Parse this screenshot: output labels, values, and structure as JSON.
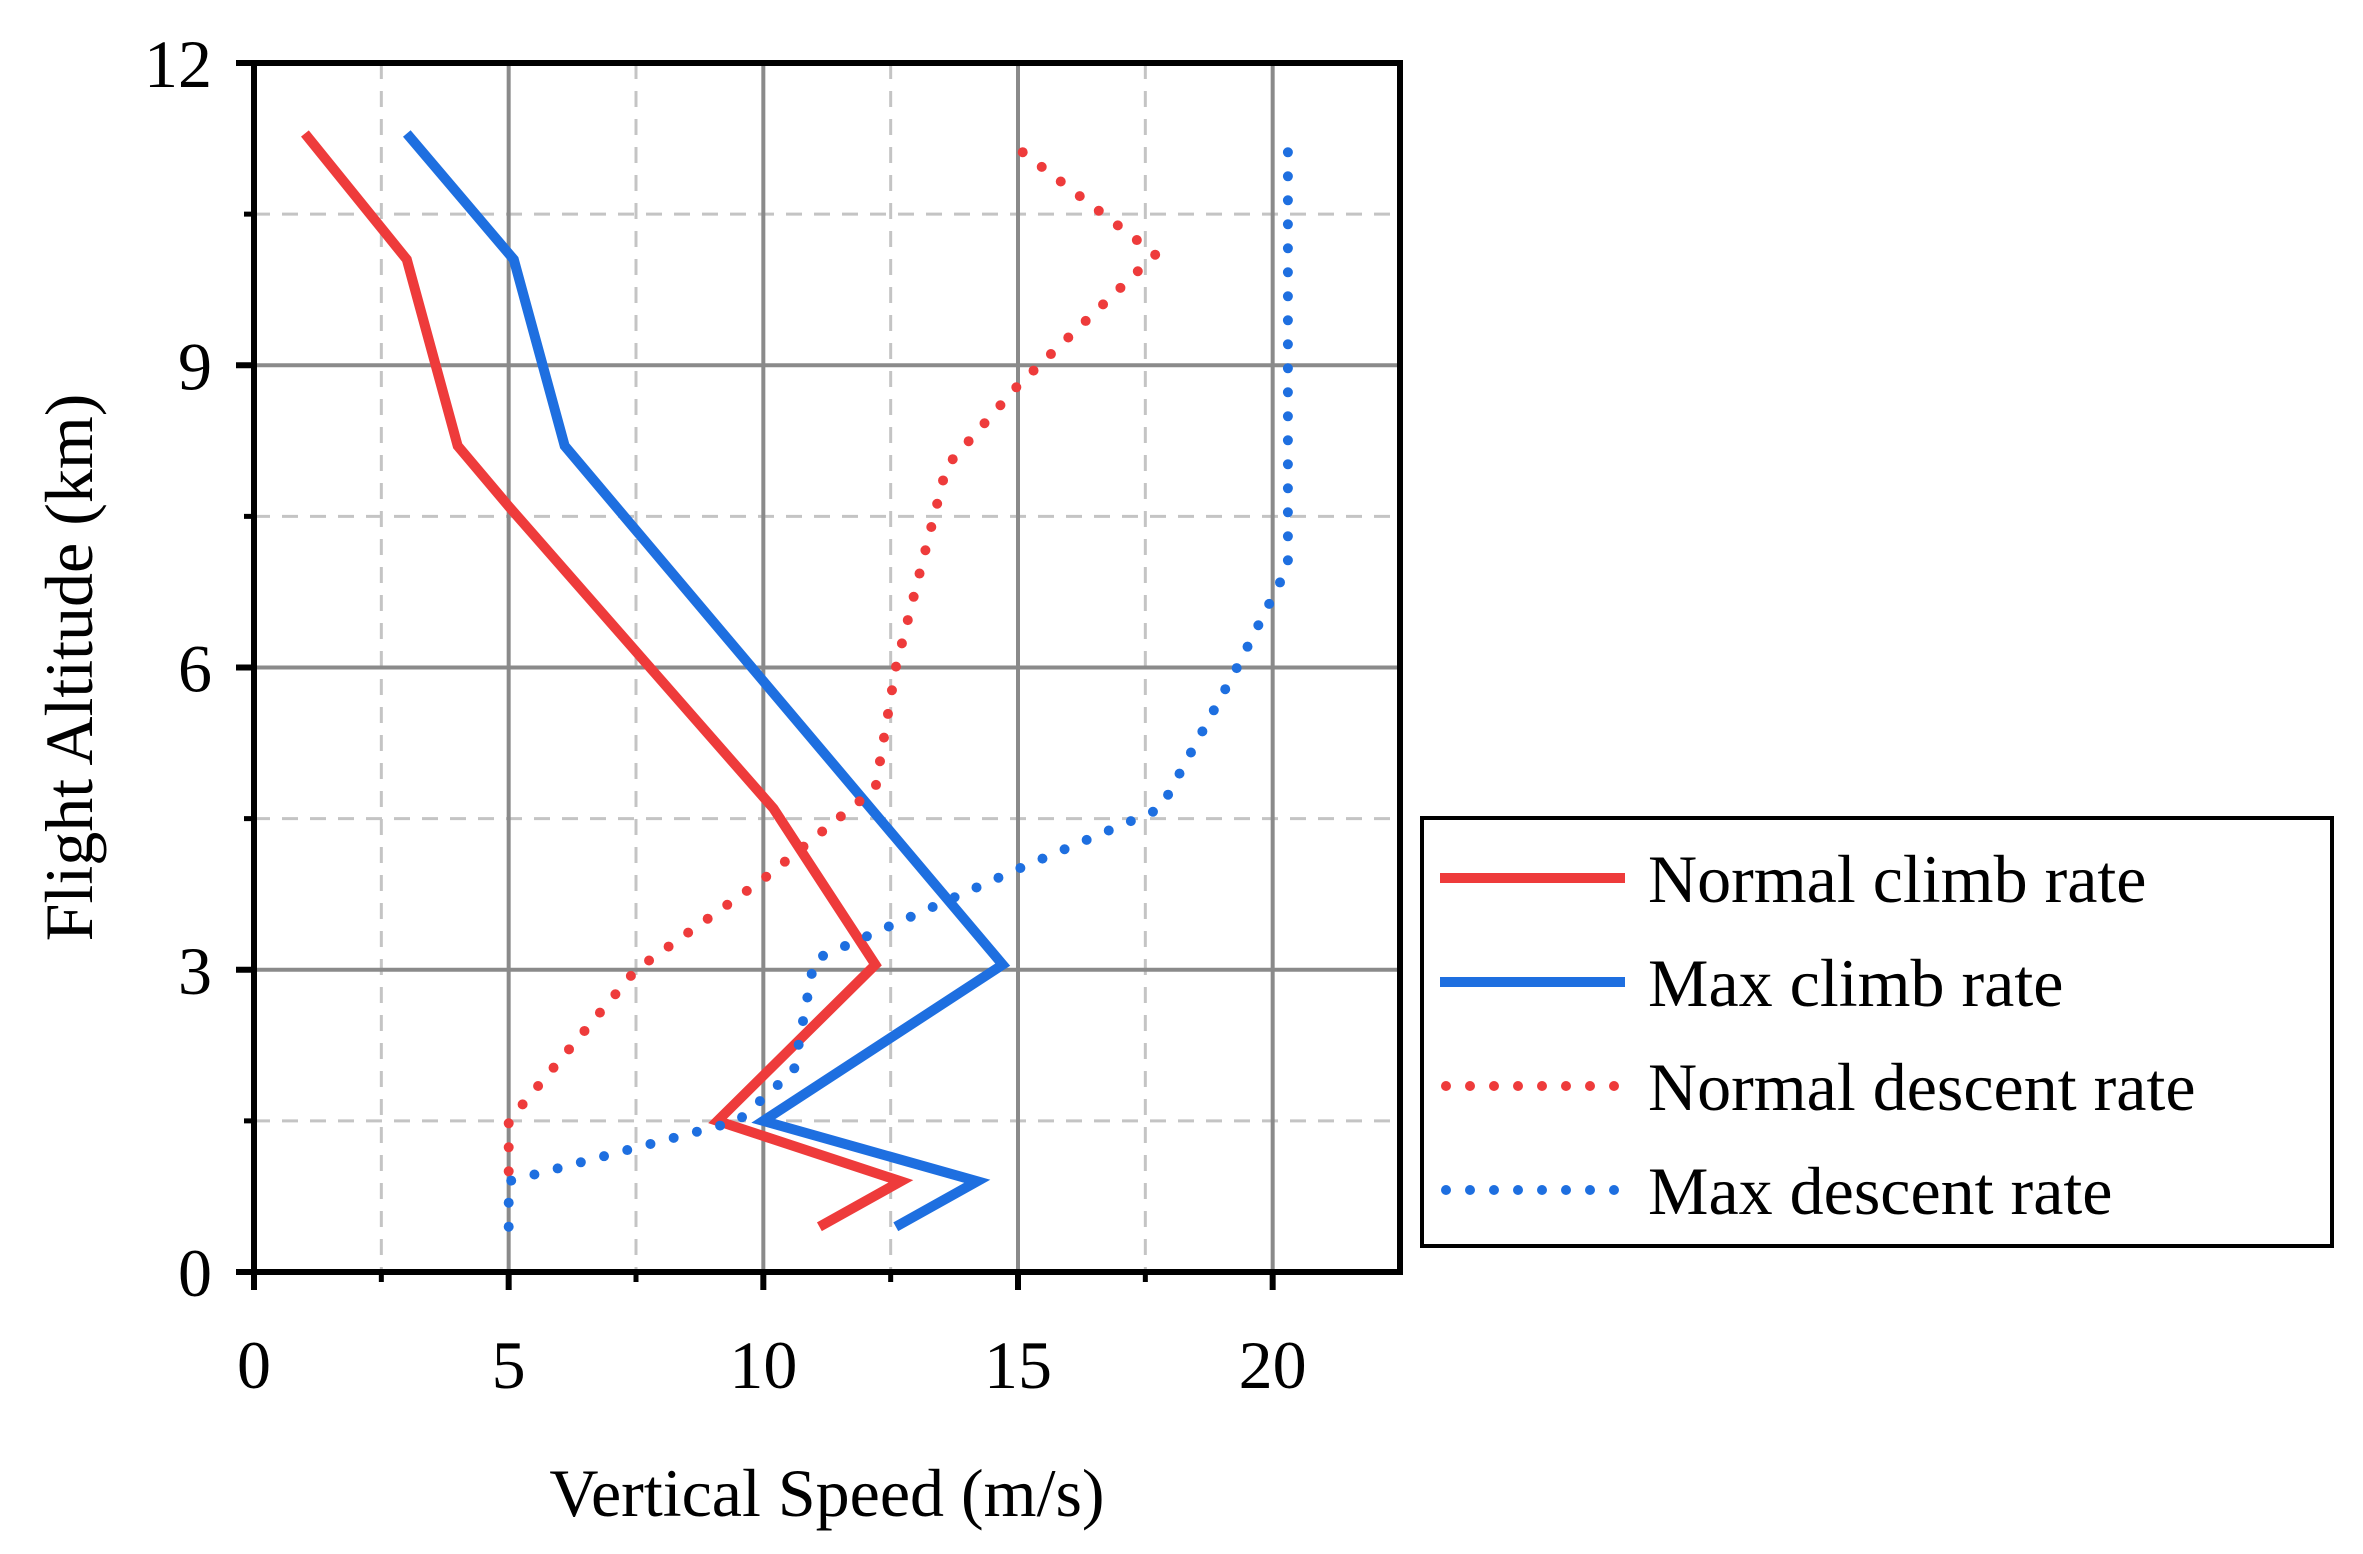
{
  "chart_data": {
    "type": "line",
    "orientation": "vertical-profile",
    "xlabel": "Vertical Speed (m/s)",
    "ylabel": "Flight Altitude (km)",
    "xlim": [
      0,
      22.5
    ],
    "ylim": [
      0,
      12
    ],
    "xticks": [
      0,
      5,
      10,
      15,
      20
    ],
    "yticks": [
      0,
      3,
      6,
      9,
      12
    ],
    "xtick_labels": [
      "0",
      "5",
      "10",
      "15",
      "20"
    ],
    "ytick_labels": [
      "0",
      "3",
      "6",
      "9",
      "12"
    ],
    "minor_grid_x": [
      2.5,
      7.5,
      12.5,
      17.5
    ],
    "minor_grid_y": [
      1.5,
      4.5,
      7.5,
      10.5
    ],
    "grid": true,
    "legend_position": "right-middle",
    "series": [
      {
        "name": "Normal climb rate",
        "style": "solid",
        "color": "#EE3B3B",
        "points": [
          [
            11.1,
            0.45
          ],
          [
            12.7,
            0.9
          ],
          [
            9.1,
            1.5
          ],
          [
            12.2,
            3.05
          ],
          [
            10.2,
            4.6
          ],
          [
            5.0,
            7.6
          ],
          [
            4.0,
            8.2
          ],
          [
            3.0,
            10.05
          ],
          [
            1.0,
            11.3
          ]
        ]
      },
      {
        "name": "Max climb rate",
        "style": "solid",
        "color": "#1E6FE0",
        "points": [
          [
            12.6,
            0.45
          ],
          [
            14.2,
            0.9
          ],
          [
            10.0,
            1.5
          ],
          [
            14.7,
            3.05
          ],
          [
            6.1,
            8.2
          ],
          [
            5.1,
            10.05
          ],
          [
            3.0,
            11.3
          ]
        ]
      },
      {
        "name": "Normal descent rate",
        "style": "dotted",
        "color": "#EE3B3B",
        "points": [
          [
            5.0,
            1.0
          ],
          [
            5.0,
            1.5
          ],
          [
            7.5,
            3.0
          ],
          [
            10.0,
            3.9
          ],
          [
            12.2,
            4.8
          ],
          [
            12.6,
            6.0
          ],
          [
            13.6,
            8.0
          ],
          [
            15.0,
            8.8
          ],
          [
            17.7,
            10.1
          ],
          [
            15.0,
            11.15
          ]
        ]
      },
      {
        "name": "Max descent rate",
        "style": "dotted",
        "color": "#1E6FE0",
        "points": [
          [
            5.0,
            0.45
          ],
          [
            5.0,
            0.9
          ],
          [
            9.5,
            1.5
          ],
          [
            10.6,
            2.0
          ],
          [
            11.0,
            3.1
          ],
          [
            15.0,
            4.0
          ],
          [
            17.8,
            4.6
          ],
          [
            19.3,
            6.0
          ],
          [
            20.3,
            7.0
          ],
          [
            20.3,
            11.2
          ]
        ]
      }
    ]
  }
}
